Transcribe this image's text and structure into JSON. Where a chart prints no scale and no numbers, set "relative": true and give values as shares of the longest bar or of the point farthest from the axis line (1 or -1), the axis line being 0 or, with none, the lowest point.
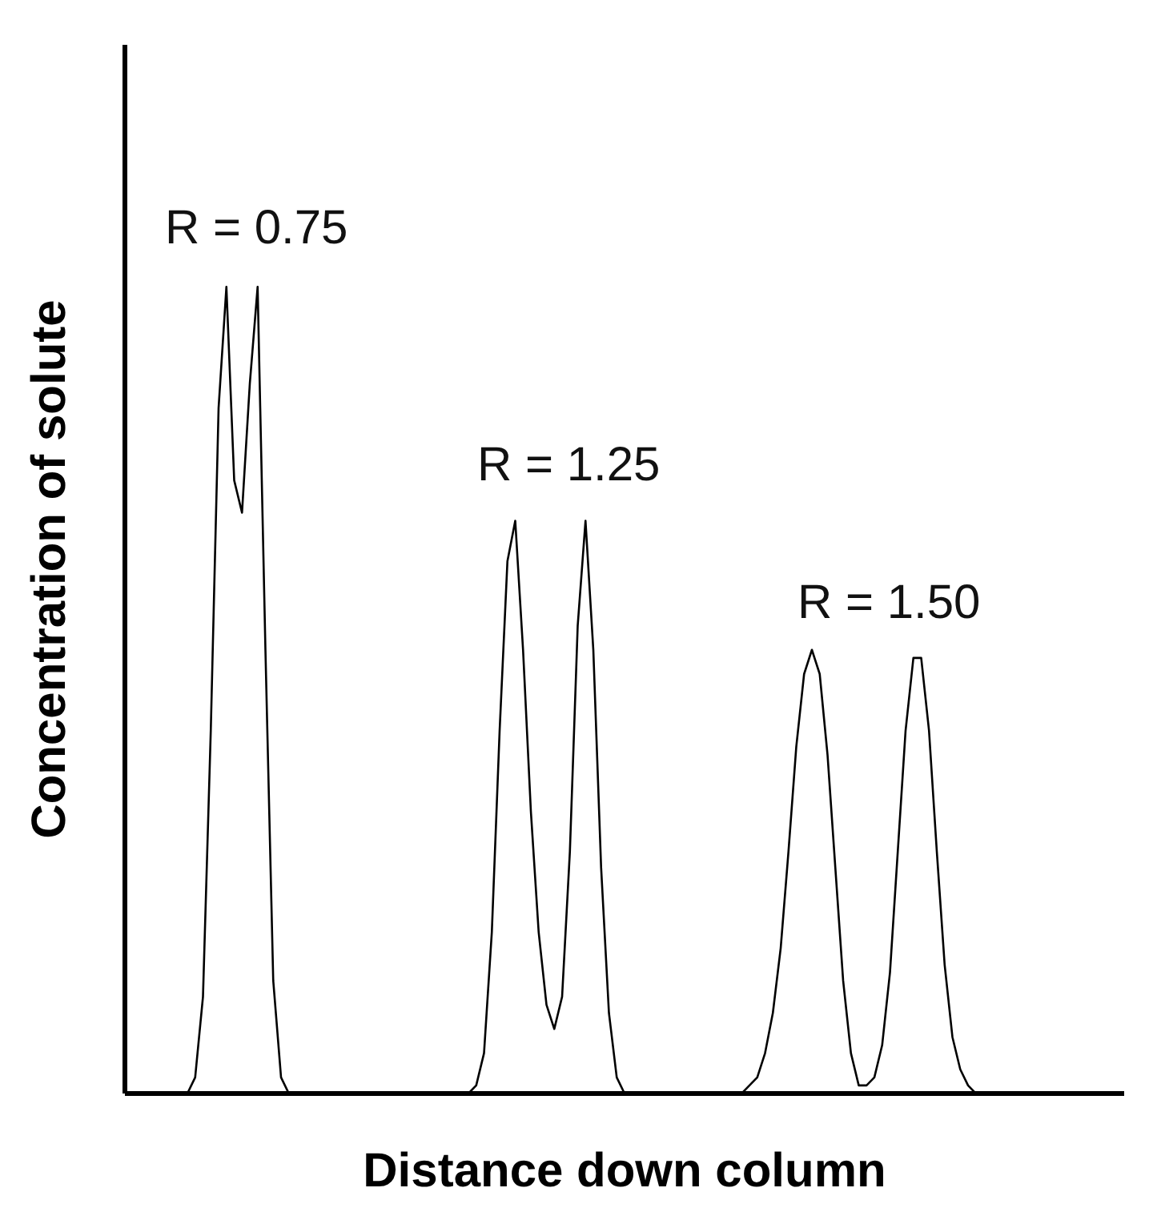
{
  "chart_data": {
    "type": "line",
    "relative": true,
    "xlabel": "Distance down column",
    "ylabel": "Concentration of solute",
    "annotations": [
      "R = 0.75",
      "R = 1.25",
      "R = 1.50"
    ],
    "categories": [
      null,
      null,
      null,
      null,
      null,
      null,
      null,
      null,
      null,
      null,
      null,
      null,
      null,
      null,
      null,
      null,
      null,
      null,
      null,
      null,
      null,
      null,
      null,
      null,
      null,
      null,
      null,
      null,
      null,
      null,
      null,
      null,
      null,
      null,
      null,
      null,
      null,
      null,
      null,
      null,
      null,
      null,
      null,
      null,
      null,
      null,
      null,
      null,
      null,
      null,
      null,
      null,
      null,
      null,
      null,
      null,
      null,
      null,
      null,
      null,
      null,
      null,
      null,
      null,
      null,
      null,
      null,
      null,
      null,
      null,
      null,
      null,
      null,
      null,
      null,
      null,
      null,
      null,
      null,
      null,
      null,
      null,
      null,
      null,
      null,
      null,
      null,
      null,
      null,
      null,
      null,
      null,
      null,
      null,
      null,
      null,
      null,
      null,
      null,
      null,
      null,
      null,
      null,
      null,
      null,
      null,
      null,
      null,
      null,
      null,
      null,
      null,
      null,
      null,
      null,
      null,
      null,
      null,
      null,
      null,
      null,
      null,
      null,
      null,
      null,
      null,
      null,
      null,
      null
    ],
    "series": [
      {
        "color": "#000000",
        "values": [
          0,
          0,
          0,
          0,
          0,
          0,
          0,
          0,
          0,
          0.02,
          0.12,
          0.45,
          0.85,
          1,
          0.76,
          0.72,
          0.88,
          1,
          0.55,
          0.14,
          0.02,
          0,
          0,
          0,
          0,
          0,
          0,
          0,
          0,
          0,
          0,
          0,
          0,
          0,
          0,
          0,
          0,
          0,
          0,
          0,
          0,
          0,
          0,
          0,
          0,
          0.01,
          0.05,
          0.2,
          0.45,
          0.66,
          0.71,
          0.55,
          0.35,
          0.2,
          0.11,
          0.08,
          0.12,
          0.3,
          0.58,
          0.71,
          0.55,
          0.28,
          0.1,
          0.02,
          0,
          0,
          0,
          0,
          0,
          0,
          0,
          0,
          0,
          0,
          0,
          0,
          0,
          0,
          0,
          0,
          0.01,
          0.02,
          0.05,
          0.1,
          0.18,
          0.3,
          0.43,
          0.52,
          0.55,
          0.52,
          0.42,
          0.28,
          0.14,
          0.05,
          0.01,
          0.01,
          0.02,
          0.06,
          0.15,
          0.3,
          0.45,
          0.54,
          0.54,
          0.45,
          0.3,
          0.16,
          0.07,
          0.03,
          0.01,
          0,
          0,
          0,
          0,
          0,
          0,
          0,
          0,
          0,
          0,
          0,
          0,
          0,
          0,
          0,
          0,
          0,
          0,
          0,
          0
        ]
      }
    ],
    "grid": false,
    "legend": false,
    "marker": "none",
    "line_style": "solid"
  }
}
